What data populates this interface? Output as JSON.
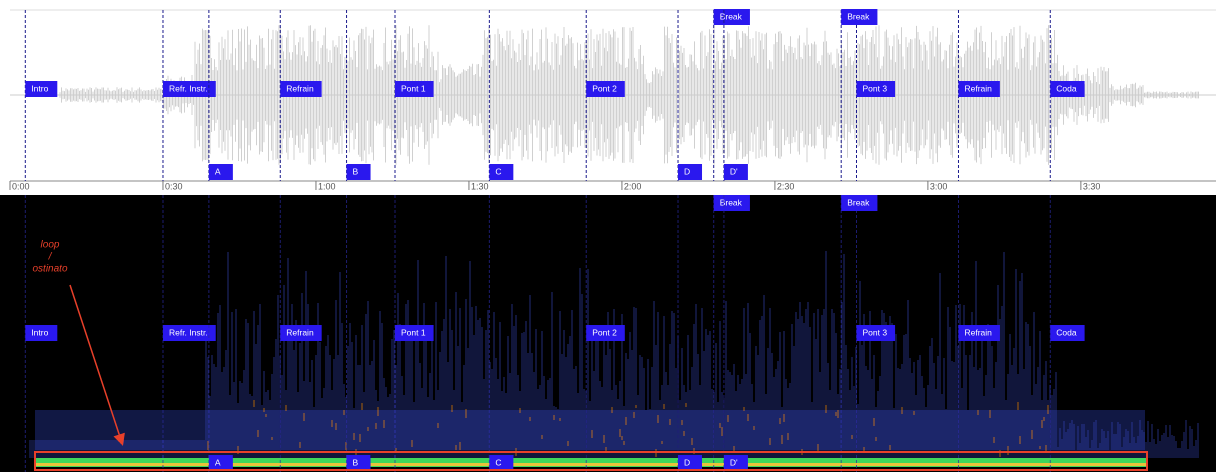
{
  "timeline": {
    "xlim": [
      0,
      236.5
    ],
    "ticks": [
      {
        "value": 0,
        "label": "0:00"
      },
      {
        "value": 30,
        "label": "0:30"
      },
      {
        "value": 60,
        "label": "1:00"
      },
      {
        "value": 90,
        "label": "1:30"
      },
      {
        "value": 120,
        "label": "2:00"
      },
      {
        "value": 150,
        "label": "2:30"
      },
      {
        "value": 180,
        "label": "3:00"
      },
      {
        "value": 210,
        "label": "3:30"
      }
    ]
  },
  "sections": [
    {
      "label": "Intro",
      "time": 3
    },
    {
      "label": "Refr. Instr.",
      "time": 30
    },
    {
      "label": "Refrain",
      "time": 53
    },
    {
      "label": "Pont 1",
      "time": 75.5
    },
    {
      "label": "Pont 2",
      "time": 113
    },
    {
      "label": "Pont 3",
      "time": 166
    },
    {
      "label": "Refrain",
      "time": 186
    },
    {
      "label": "Coda",
      "time": 204
    }
  ],
  "breaks": [
    {
      "label": "Break",
      "time": 138
    },
    {
      "label": "Break",
      "time": 163
    }
  ],
  "subsections": [
    {
      "label": "A",
      "time": 39
    },
    {
      "label": "B",
      "time": 66
    },
    {
      "label": "C",
      "time": 94
    },
    {
      "label": "D",
      "time": 131
    },
    {
      "label": "D'",
      "time": 140
    }
  ],
  "annotation": {
    "lines": [
      "loop",
      "/",
      "ostinato"
    ]
  }
}
